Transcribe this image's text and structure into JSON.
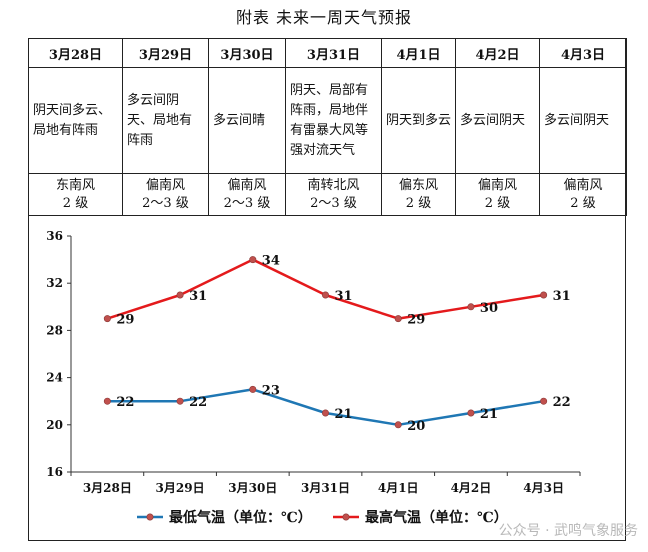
{
  "title": "附表 未来一周天气预报",
  "forecast": [
    {
      "date": "3月28日",
      "weather": "阴天间多云、局地有阵雨",
      "wind_dir": "东南风",
      "wind_level": "2 级"
    },
    {
      "date": "3月29日",
      "weather": "多云间阴天、局地有阵雨",
      "wind_dir": "偏南风",
      "wind_level": "2～3 级"
    },
    {
      "date": "3月30日",
      "weather": "多云间晴",
      "wind_dir": "偏南风",
      "wind_level": "2～3 级"
    },
    {
      "date": "3月31日",
      "weather": "阴天、局部有阵雨，局地伴有雷暴大风等强对流天气",
      "wind_dir": "南转北风",
      "wind_level": "2～3 级"
    },
    {
      "date": "4月1日",
      "weather": "阴天到多云",
      "wind_dir": "偏东风",
      "wind_level": "2 级"
    },
    {
      "date": "4月2日",
      "weather": "多云间阴天",
      "wind_dir": "偏南风",
      "wind_level": "2 级"
    },
    {
      "date": "4月3日",
      "weather": "多云间阴天",
      "wind_dir": "偏南风",
      "wind_level": "2 级"
    }
  ],
  "chart_data": {
    "type": "line",
    "categories": [
      "3月28日",
      "3月29日",
      "3月30日",
      "3月31日",
      "4月1日",
      "4月2日",
      "4月3日"
    ],
    "series": [
      {
        "name": "最低气温（单位：℃）",
        "color": "#1f77b4",
        "values": [
          22,
          22,
          23,
          21,
          20,
          21,
          22
        ]
      },
      {
        "name": "最高气温（单位：℃）",
        "color": "#e41a1c",
        "values": [
          29,
          31,
          34,
          31,
          29,
          30,
          31
        ]
      }
    ],
    "yticks": [
      16,
      20,
      24,
      28,
      32,
      36
    ],
    "ylim": [
      16,
      36
    ],
    "grid": false,
    "legend": "bottom"
  },
  "watermark": "公众号 · 武鸣气象服务"
}
